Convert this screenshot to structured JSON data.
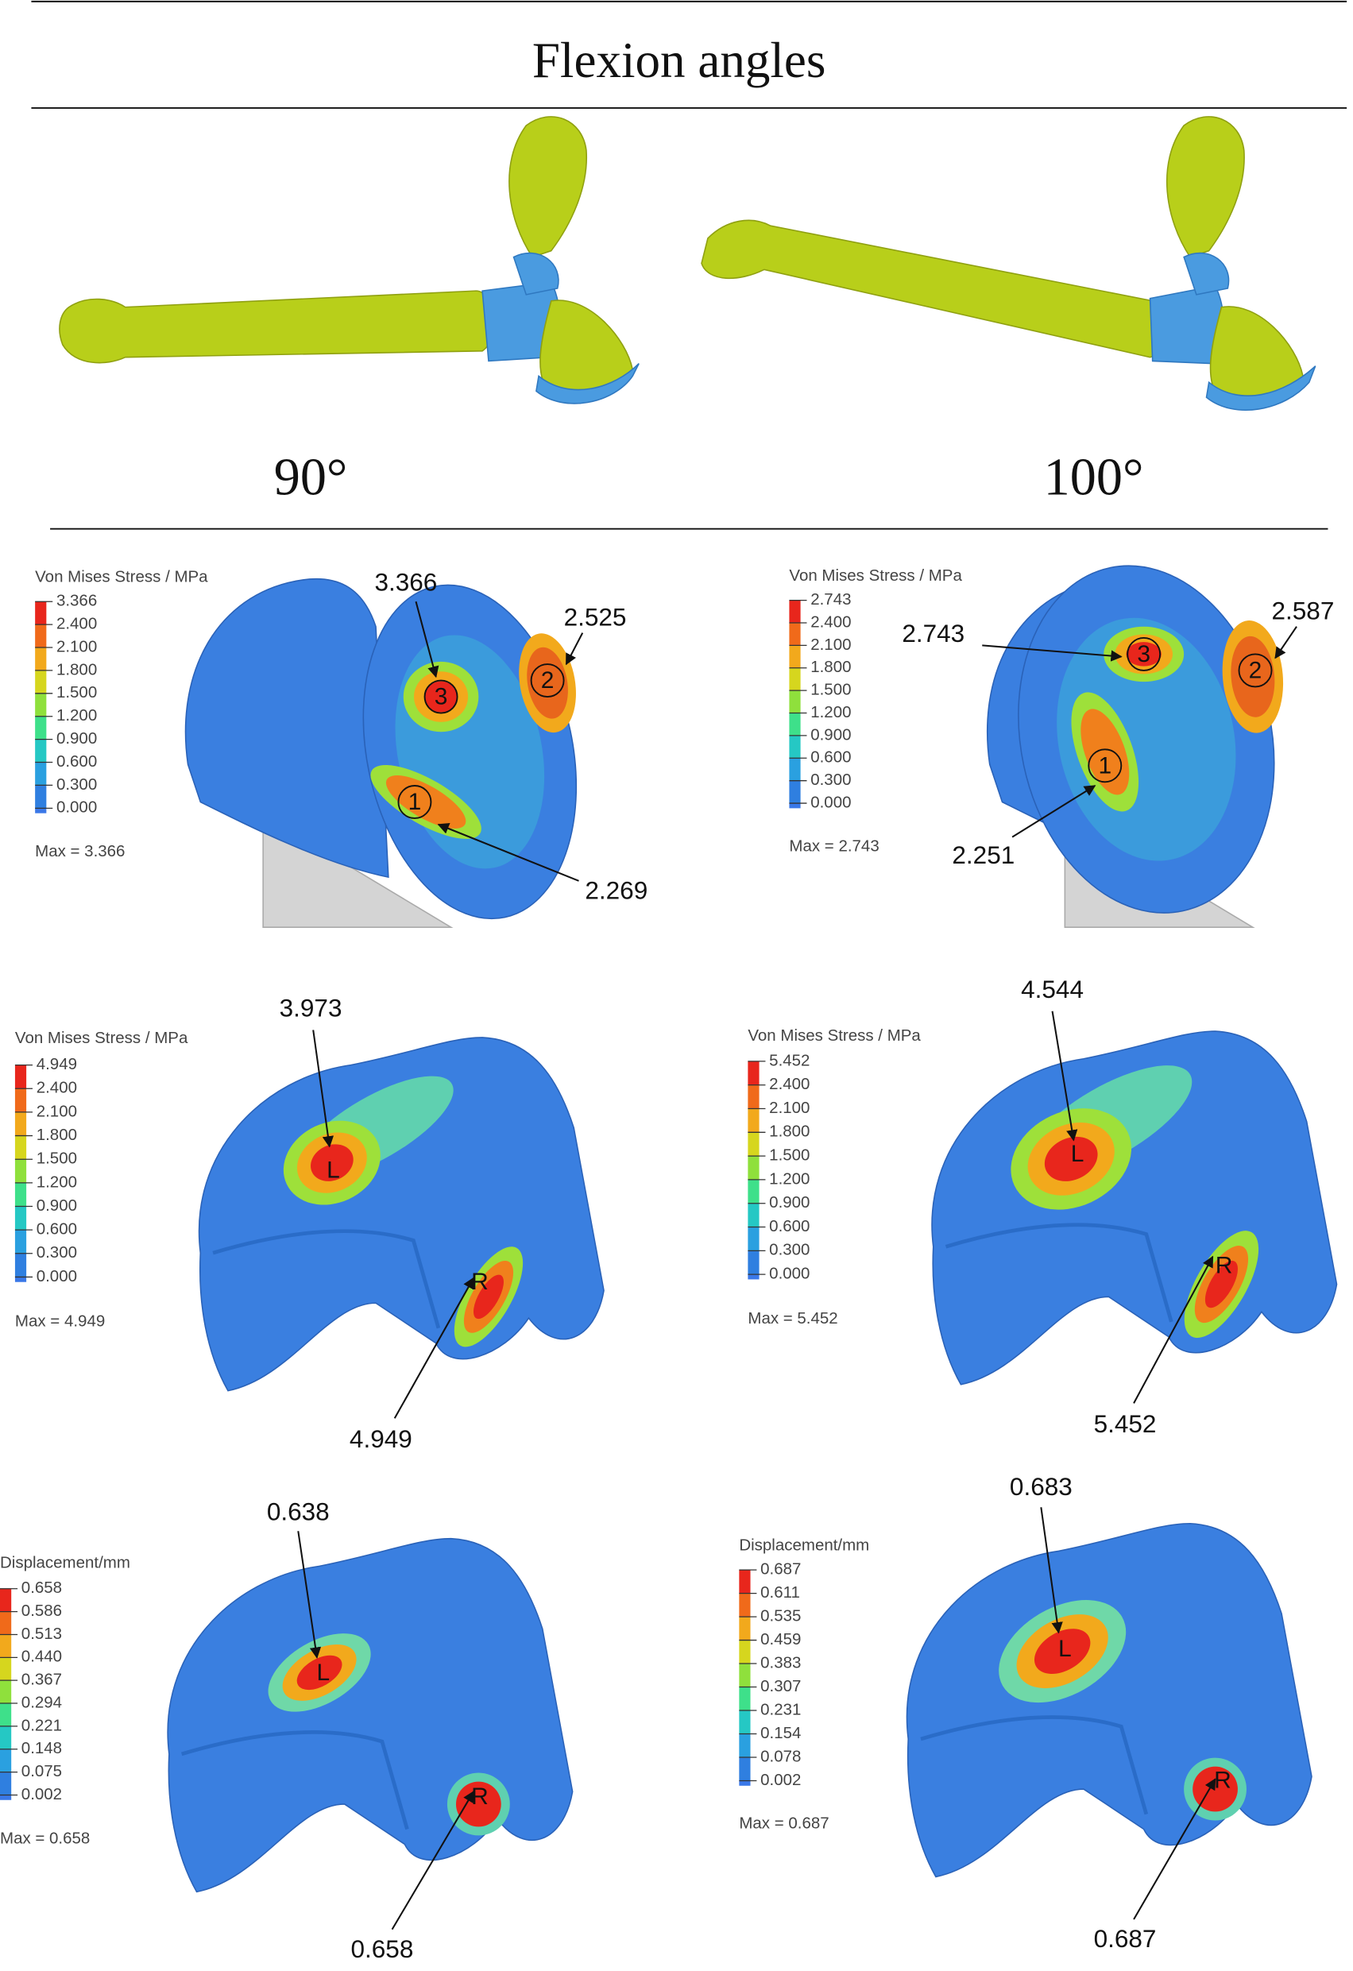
{
  "header": {
    "title": "Flexion angles"
  },
  "columns": [
    {
      "angle": "90°"
    },
    {
      "angle": "100°"
    }
  ],
  "panels": [
    {
      "legend_title": "Von Mises Stress / MPa",
      "legend_ticks": [
        "3.366",
        "2.400",
        "2.100",
        "1.800",
        "1.500",
        "1.200",
        "0.900",
        "0.600",
        "0.300",
        "0.000"
      ],
      "max": "Max = 3.366",
      "callouts": [
        "3.366",
        "2.525",
        "2.269"
      ],
      "markers": [
        "3",
        "2",
        "1"
      ]
    },
    {
      "legend_title": "Von Mises Stress / MPa",
      "legend_ticks": [
        "2.743",
        "2.400",
        "2.100",
        "1.800",
        "1.500",
        "1.200",
        "0.900",
        "0.600",
        "0.300",
        "0.000"
      ],
      "max": "Max = 2.743",
      "callouts": [
        "2.743",
        "2.587",
        "2.251"
      ],
      "markers": [
        "3",
        "2",
        "1"
      ]
    },
    {
      "legend_title": "Von Mises Stress / MPa",
      "legend_ticks": [
        "4.949",
        "2.400",
        "2.100",
        "1.800",
        "1.500",
        "1.200",
        "0.900",
        "0.600",
        "0.300",
        "0.000"
      ],
      "max": "Max = 4.949",
      "callouts": [
        "3.973",
        "4.949"
      ],
      "markers": [
        "L",
        "R"
      ]
    },
    {
      "legend_title": "Von Mises Stress / MPa",
      "legend_ticks": [
        "5.452",
        "2.400",
        "2.100",
        "1.800",
        "1.500",
        "1.200",
        "0.900",
        "0.600",
        "0.300",
        "0.000"
      ],
      "max": "Max = 5.452",
      "callouts": [
        "4.544",
        "5.452"
      ],
      "markers": [
        "L",
        "R"
      ]
    },
    {
      "legend_title": "Displacement/mm",
      "legend_ticks": [
        "0.658",
        "0.586",
        "0.513",
        "0.440",
        "0.367",
        "0.294",
        "0.221",
        "0.148",
        "0.075",
        "0.002"
      ],
      "max": "Max = 0.658",
      "callouts": [
        "0.638",
        "0.658"
      ],
      "markers": [
        "L",
        "R"
      ]
    },
    {
      "legend_title": "Displacement/mm",
      "legend_ticks": [
        "0.687",
        "0.611",
        "0.535",
        "0.459",
        "0.383",
        "0.307",
        "0.231",
        "0.154",
        "0.078",
        "0.002"
      ],
      "max": "Max = 0.687",
      "callouts": [
        "0.683",
        "0.687"
      ],
      "markers": [
        "L",
        "R"
      ]
    }
  ]
}
